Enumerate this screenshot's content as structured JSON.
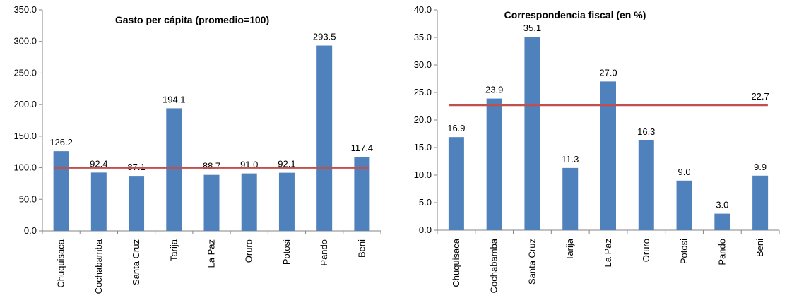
{
  "chart_data": [
    {
      "type": "bar",
      "title": "Gasto per cápita (promedio=100)",
      "categories": [
        "Chuquisaca",
        "Cochabamba",
        "Santa Cruz",
        "Tarija",
        "La Paz",
        "Oruro",
        "Potosi",
        "Pando",
        "Beni"
      ],
      "values": [
        126.2,
        92.4,
        87.1,
        194.1,
        88.7,
        91.0,
        92.1,
        293.5,
        117.4
      ],
      "data_labels": [
        "126.2",
        "92.4",
        "87.1",
        "194.1",
        "88.7",
        "91.0",
        "92.1",
        "293.5",
        "117.4"
      ],
      "y_ticks": [
        "0.0",
        "50.0",
        "100.0",
        "150.0",
        "200.0",
        "250.0",
        "300.0",
        "350.0"
      ],
      "ylim": [
        0,
        350
      ],
      "reference_line": {
        "value": 100,
        "label": ""
      },
      "bar_color": "#4f81bd",
      "line_color": "#c0504d",
      "grid": false,
      "legend": "none"
    },
    {
      "type": "bar",
      "title": "Correspondencia fiscal (en %)",
      "categories": [
        "Chuquisaca",
        "Cochabamba",
        "Santa Cruz",
        "Tarija",
        "La Paz",
        "Oruro",
        "Potosi",
        "Pando",
        "Beni"
      ],
      "values": [
        16.9,
        23.9,
        35.1,
        11.3,
        27.0,
        16.3,
        9.0,
        3.0,
        9.9
      ],
      "data_labels": [
        "16.9",
        "23.9",
        "35.1",
        "11.3",
        "27.0",
        "16.3",
        "9.0",
        "3.0",
        "9.9"
      ],
      "y_ticks": [
        "0.0",
        "5.0",
        "10.0",
        "15.0",
        "20.0",
        "25.0",
        "30.0",
        "35.0",
        "40.0"
      ],
      "ylim": [
        0,
        40
      ],
      "reference_line": {
        "value": 22.7,
        "label": "22.7"
      },
      "bar_color": "#4f81bd",
      "line_color": "#c0504d",
      "grid": false,
      "legend": "none"
    }
  ]
}
